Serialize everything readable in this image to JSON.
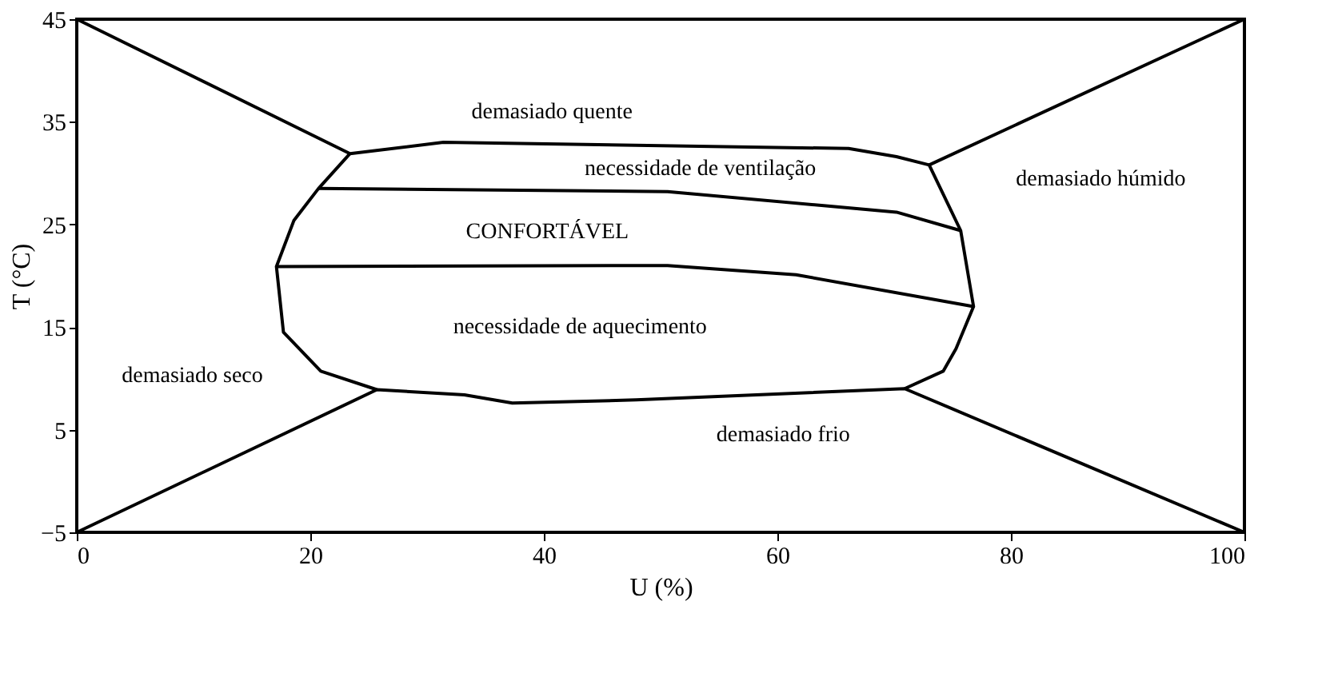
{
  "chart_data": {
    "type": "line",
    "xlabel": "U (%)",
    "ylabel": "T (°C)",
    "xlim": [
      0,
      100
    ],
    "ylim": [
      -5,
      45
    ],
    "xticks": [
      0,
      20,
      40,
      60,
      80,
      100
    ],
    "yticks": [
      -5,
      5,
      15,
      25,
      35,
      45
    ],
    "grid": false,
    "legend": false,
    "marker": "none",
    "line_style": "solid",
    "series": [
      {
        "color": "#000000",
        "x": [
          0,
          23.4,
          31.4,
          66.1,
          70.2,
          73.0,
          100
        ],
        "values": [
          45,
          31.9,
          33.0,
          32.4,
          31.6,
          30.8,
          45
        ]
      },
      {
        "color": "#000000",
        "x": [
          0,
          25.7,
          33.2,
          37.3,
          47.9,
          70.9,
          100
        ],
        "values": [
          -5,
          8.9,
          8.4,
          7.6,
          7.9,
          9.0,
          -5
        ]
      },
      {
        "color": "#000000",
        "x": [
          73.0,
          75.7,
          76.8,
          75.3,
          74.2,
          70.9
        ],
        "values": [
          30.8,
          24.4,
          17.0,
          12.9,
          10.7,
          9.0
        ]
      },
      {
        "color": "#000000",
        "x": [
          25.7,
          20.9,
          17.7,
          17.1,
          18.6,
          20.7,
          23.4
        ],
        "values": [
          8.9,
          10.7,
          14.5,
          20.9,
          25.4,
          28.5,
          31.9
        ]
      },
      {
        "color": "#000000",
        "x": [
          20.7,
          50.6,
          70.2,
          75.7
        ],
        "values": [
          28.5,
          28.2,
          26.2,
          24.4
        ]
      },
      {
        "color": "#000000",
        "x": [
          17.1,
          50.6,
          61.6,
          76.8
        ],
        "values": [
          20.9,
          21.0,
          20.1,
          17.0
        ]
      }
    ],
    "annotations": [
      "demasiado quente",
      "necessidade de ventilação",
      "CONFORTÁVEL",
      "necessidade de aquecimento",
      "demasiado seco",
      "demasiado frio",
      "demasiado húmido"
    ]
  }
}
